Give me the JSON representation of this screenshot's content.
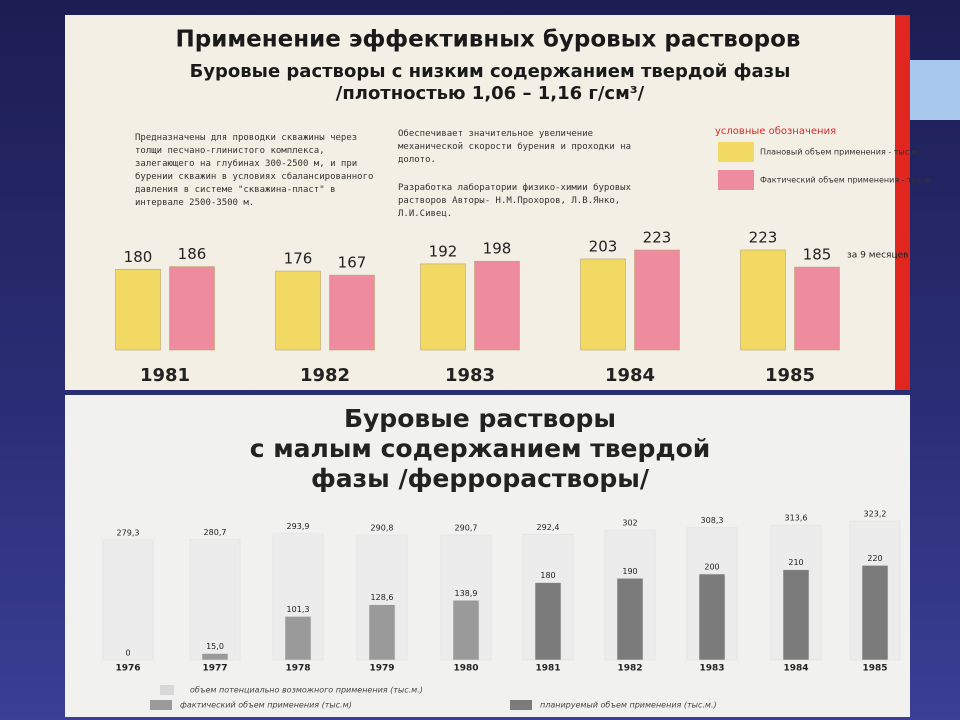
{
  "chart_data": [
    {
      "type": "bar",
      "title": "Применение эффективных буровых растворов",
      "subtitle": "Буровые растворы с низким содержанием твердой фазы /плотностью 1,06 – 1,16 г/см³/",
      "notes": [
        "Предназначены для проводки скважины через толщи песчано-глинистого комплекса, залегающего на глубинах 300-2500 м, и при бурении скважин в условиях сбалансированного давления в системе \"скважина-пласт\" в интервале 2500-3500 м.",
        "Обеспечивает значительное увеличение механической скорости бурения и проходки на долото.",
        "Разработка лаборатории физико-химии буровых растворов Авторы- Н.М.Прохоров, Л.В.Янко, Л.И.Сивец."
      ],
      "legend_title": "условные обозначения",
      "categories": [
        "1981",
        "1982",
        "1983",
        "1984",
        "1985"
      ],
      "series": [
        {
          "name": "Плановый объем применения - тыс.м",
          "color": "#f2d964",
          "values": [
            180,
            176,
            192,
            203,
            223
          ]
        },
        {
          "name": "Фактический объем применения - тыс.м",
          "color": "#ee8b9e",
          "values": [
            186,
            167,
            198,
            223,
            185
          ]
        }
      ],
      "annotation": "за 9 месяцев"
    },
    {
      "type": "bar",
      "title": "Буровые растворы с малым содержанием твердой фазы /феррорастворы/",
      "categories": [
        "1976",
        "1977",
        "1978",
        "1979",
        "1980",
        "1981",
        "1982",
        "1983",
        "1984",
        "1985"
      ],
      "series": [
        {
          "name": "объем потенциально возможного применения (тыс.м.)",
          "color": "#ececec",
          "values": [
            279.3,
            280.7,
            293.9,
            290.8,
            290.7,
            292.4,
            302,
            308.3,
            313.6,
            323.2
          ],
          "value_labels": [
            "279,3",
            "280,7",
            "293,9",
            "290,8",
            "290,7",
            "292,4",
            "302",
            "308,3",
            "313,6",
            "323,2"
          ]
        },
        {
          "name": "фактический объем применения (тыс.м)",
          "color": "#9a9a9a",
          "values": [
            0,
            15.0,
            101.3,
            128.6,
            138.9,
            null,
            null,
            null,
            null,
            null
          ],
          "value_labels": [
            "0",
            "15,0",
            "101,3",
            "128,6",
            "138,9",
            null,
            null,
            null,
            null,
            null
          ]
        },
        {
          "name": "планируемый объем применения (тыс.м.)",
          "color": "#7b7b7b",
          "values": [
            null,
            null,
            null,
            null,
            null,
            180,
            190,
            200,
            210,
            220
          ]
        }
      ]
    }
  ]
}
